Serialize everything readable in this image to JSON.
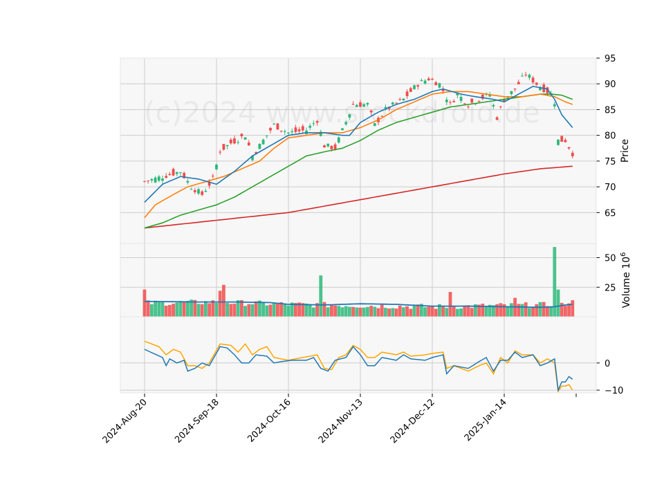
{
  "chart_data": {
    "type": "candlestick",
    "watermark": "(c)2024 www.stockdroid.de",
    "x_tick_labels": [
      "2024-Aug-20",
      "2024-Sep-18",
      "2024-Oct-16",
      "2024-Nov-13",
      "2024-Dec-12",
      "2025-Jan-14"
    ],
    "x_tick_index": [
      0,
      20,
      40,
      60,
      80,
      100
    ],
    "bar_count": 120,
    "colors": {
      "up": "#2db87a",
      "down": "#f04c4c",
      "ma20": "#1f77b4",
      "ma50": "#ff7f0e",
      "ma100": "#2ca02c",
      "ma200": "#d62728",
      "osc_fast": "#1f77b4",
      "osc_slow": "#ffa500",
      "vol_avg": "#1f77b4",
      "grid": "#cccccc",
      "panel_bg": "#f7f7f7"
    },
    "price_panel": {
      "ylabel": "Price",
      "ylim": [
        59,
        95
      ],
      "yticks": [
        65,
        70,
        75,
        80,
        85,
        90,
        95
      ],
      "anchors": [
        [
          0,
          71
        ],
        [
          5,
          72
        ],
        [
          10,
          73
        ],
        [
          13,
          70
        ],
        [
          16,
          68.5
        ],
        [
          19,
          71.5
        ],
        [
          21,
          77
        ],
        [
          24,
          78.5
        ],
        [
          28,
          80
        ],
        [
          30,
          76
        ],
        [
          33,
          79
        ],
        [
          36,
          82
        ],
        [
          40,
          80.5
        ],
        [
          45,
          81
        ],
        [
          48,
          83
        ],
        [
          50,
          78
        ],
        [
          53,
          77.5
        ],
        [
          58,
          86
        ],
        [
          62,
          86
        ],
        [
          64,
          82
        ],
        [
          67,
          85
        ],
        [
          72,
          87
        ],
        [
          76,
          90
        ],
        [
          79,
          91
        ],
        [
          82,
          90
        ],
        [
          85,
          86
        ],
        [
          87,
          88
        ],
        [
          90,
          86
        ],
        [
          93,
          87
        ],
        [
          96,
          88
        ],
        [
          98,
          83.5
        ],
        [
          100,
          87
        ],
        [
          103,
          89
        ],
        [
          106,
          92
        ],
        [
          109,
          90
        ],
        [
          113,
          88
        ],
        [
          114,
          86.5
        ],
        [
          115,
          79
        ],
        [
          117,
          79
        ],
        [
          119,
          76.5
        ]
      ],
      "ma20": [
        [
          0,
          67
        ],
        [
          5,
          70.5
        ],
        [
          10,
          72
        ],
        [
          15,
          71.5
        ],
        [
          20,
          70.5
        ],
        [
          25,
          73
        ],
        [
          30,
          76
        ],
        [
          35,
          78
        ],
        [
          40,
          80
        ],
        [
          45,
          80.5
        ],
        [
          50,
          80.5
        ],
        [
          55,
          80
        ],
        [
          57,
          80
        ],
        [
          60,
          82.5
        ],
        [
          65,
          84.5
        ],
        [
          70,
          86
        ],
        [
          75,
          87
        ],
        [
          80,
          88.5
        ],
        [
          83,
          89
        ],
        [
          88,
          88
        ],
        [
          92,
          87.5
        ],
        [
          97,
          87
        ],
        [
          100,
          86.5
        ],
        [
          104,
          88
        ],
        [
          108,
          89.5
        ],
        [
          112,
          89
        ],
        [
          114,
          87
        ],
        [
          116,
          84
        ],
        [
          119,
          81.5
        ]
      ],
      "ma50": [
        [
          0,
          64
        ],
        [
          3,
          66.5
        ],
        [
          8,
          68.5
        ],
        [
          12,
          70
        ],
        [
          17,
          71
        ],
        [
          22,
          72
        ],
        [
          27,
          73.5
        ],
        [
          32,
          75
        ],
        [
          36,
          77.5
        ],
        [
          40,
          79.5
        ],
        [
          45,
          80
        ],
        [
          50,
          80.5
        ],
        [
          55,
          80.5
        ],
        [
          60,
          81.5
        ],
        [
          65,
          83
        ],
        [
          70,
          85
        ],
        [
          75,
          86.5
        ],
        [
          80,
          88
        ],
        [
          85,
          88.5
        ],
        [
          90,
          88.5
        ],
        [
          95,
          88
        ],
        [
          100,
          87.5
        ],
        [
          105,
          87.5
        ],
        [
          110,
          88
        ],
        [
          114,
          87.5
        ],
        [
          117,
          86.5
        ],
        [
          119,
          86
        ]
      ],
      "ma100": [
        [
          0,
          62
        ],
        [
          5,
          63
        ],
        [
          10,
          64.5
        ],
        [
          15,
          65.5
        ],
        [
          20,
          66.5
        ],
        [
          25,
          68
        ],
        [
          30,
          70
        ],
        [
          35,
          72
        ],
        [
          40,
          74
        ],
        [
          45,
          76
        ],
        [
          50,
          76.8
        ],
        [
          55,
          77.5
        ],
        [
          60,
          79
        ],
        [
          65,
          81
        ],
        [
          70,
          82.5
        ],
        [
          75,
          83.5
        ],
        [
          80,
          84.5
        ],
        [
          85,
          85.5
        ],
        [
          90,
          86
        ],
        [
          95,
          86.5
        ],
        [
          100,
          87
        ],
        [
          105,
          87.5
        ],
        [
          110,
          88
        ],
        [
          113,
          88
        ],
        [
          116,
          87.8
        ],
        [
          119,
          87
        ]
      ],
      "ma200": [
        [
          0,
          62
        ],
        [
          20,
          63.5
        ],
        [
          40,
          65
        ],
        [
          60,
          67.5
        ],
        [
          80,
          70
        ],
        [
          100,
          72.5
        ],
        [
          110,
          73.5
        ],
        [
          119,
          74
        ]
      ]
    },
    "volume_panel": {
      "ylabel": "Volume 10^6",
      "ylim": [
        0,
        62
      ],
      "yticks": [
        25,
        50
      ],
      "spikes": [
        {
          "index": 0,
          "value": 23
        },
        {
          "index": 21,
          "value": 22
        },
        {
          "index": 22,
          "value": 27
        },
        {
          "index": 49,
          "value": 35
        },
        {
          "index": 85,
          "value": 21
        },
        {
          "index": 103,
          "value": 16
        },
        {
          "index": 114,
          "value": 59
        },
        {
          "index": 115,
          "value": 23
        },
        {
          "index": 119,
          "value": 14
        }
      ],
      "base_anchors": [
        [
          0,
          9
        ],
        [
          20,
          10
        ],
        [
          40,
          8
        ],
        [
          60,
          7
        ],
        [
          80,
          6
        ],
        [
          100,
          7
        ],
        [
          119,
          8
        ]
      ],
      "avg_line": [
        [
          0,
          13
        ],
        [
          15,
          12.5
        ],
        [
          25,
          12.5
        ],
        [
          35,
          12
        ],
        [
          40,
          10.5
        ],
        [
          50,
          10
        ],
        [
          60,
          11
        ],
        [
          70,
          10.5
        ],
        [
          80,
          9
        ],
        [
          90,
          9
        ],
        [
          100,
          8.5
        ],
        [
          110,
          8
        ],
        [
          114,
          8.5
        ],
        [
          117,
          10
        ],
        [
          119,
          10.5
        ]
      ]
    },
    "oscillator_panel": {
      "ylim": [
        -11,
        17
      ],
      "yticks": [
        -10,
        0
      ],
      "fast": [
        [
          0,
          5
        ],
        [
          5,
          2
        ],
        [
          6,
          -1
        ],
        [
          7,
          1.5
        ],
        [
          9,
          0
        ],
        [
          11,
          1
        ],
        [
          12,
          -3
        ],
        [
          14,
          -2
        ],
        [
          16,
          0
        ],
        [
          18,
          -1
        ],
        [
          21,
          6
        ],
        [
          23,
          5.5
        ],
        [
          25,
          3
        ],
        [
          27,
          0
        ],
        [
          29,
          0
        ],
        [
          31,
          3
        ],
        [
          34,
          2.5
        ],
        [
          36,
          0
        ],
        [
          38,
          0.5
        ],
        [
          41,
          1
        ],
        [
          45,
          1
        ],
        [
          47,
          2
        ],
        [
          49,
          -2
        ],
        [
          51,
          -3
        ],
        [
          53,
          1
        ],
        [
          56,
          2
        ],
        [
          58,
          6
        ],
        [
          60,
          3
        ],
        [
          62,
          -1
        ],
        [
          64,
          -1
        ],
        [
          66,
          2
        ],
        [
          70,
          1
        ],
        [
          72,
          3
        ],
        [
          74,
          1.5
        ],
        [
          78,
          1
        ],
        [
          80,
          2
        ],
        [
          83,
          3
        ],
        [
          84,
          -4
        ],
        [
          86,
          -1
        ],
        [
          90,
          -2
        ],
        [
          93,
          0.5
        ],
        [
          95,
          2
        ],
        [
          97,
          -3
        ],
        [
          99,
          1
        ],
        [
          101,
          1
        ],
        [
          103,
          4
        ],
        [
          105,
          2
        ],
        [
          108,
          3
        ],
        [
          110,
          -1
        ],
        [
          112,
          0
        ],
        [
          114,
          1.5
        ],
        [
          115,
          -10
        ],
        [
          116,
          -7
        ],
        [
          117,
          -7
        ],
        [
          118,
          -5
        ],
        [
          119,
          -6
        ]
      ],
      "slow": [
        [
          0,
          8
        ],
        [
          4,
          6
        ],
        [
          6,
          3
        ],
        [
          8,
          5
        ],
        [
          10,
          4
        ],
        [
          12,
          -1
        ],
        [
          14,
          -1
        ],
        [
          16,
          -2
        ],
        [
          18,
          0
        ],
        [
          21,
          7
        ],
        [
          24,
          6.5
        ],
        [
          26,
          4
        ],
        [
          28,
          7
        ],
        [
          30,
          3
        ],
        [
          32,
          5
        ],
        [
          34,
          6
        ],
        [
          36,
          2
        ],
        [
          40,
          1
        ],
        [
          44,
          2
        ],
        [
          48,
          3
        ],
        [
          50,
          -2
        ],
        [
          52,
          -2.5
        ],
        [
          54,
          2
        ],
        [
          56,
          3
        ],
        [
          58,
          6.5
        ],
        [
          60,
          5
        ],
        [
          62,
          2
        ],
        [
          64,
          2
        ],
        [
          66,
          4
        ],
        [
          70,
          3
        ],
        [
          72,
          4
        ],
        [
          74,
          2.5
        ],
        [
          78,
          3
        ],
        [
          80,
          3.5
        ],
        [
          83,
          4
        ],
        [
          84,
          -2
        ],
        [
          86,
          -1
        ],
        [
          90,
          -3
        ],
        [
          93,
          -1
        ],
        [
          95,
          0
        ],
        [
          97,
          -4
        ],
        [
          99,
          2
        ],
        [
          101,
          0
        ],
        [
          103,
          4.5
        ],
        [
          105,
          3
        ],
        [
          108,
          3
        ],
        [
          110,
          0
        ],
        [
          112,
          1.5
        ],
        [
          114,
          0
        ],
        [
          115,
          -10.5
        ],
        [
          116,
          -8.5
        ],
        [
          117,
          -8.5
        ],
        [
          118,
          -8
        ],
        [
          119,
          -10
        ]
      ]
    }
  }
}
